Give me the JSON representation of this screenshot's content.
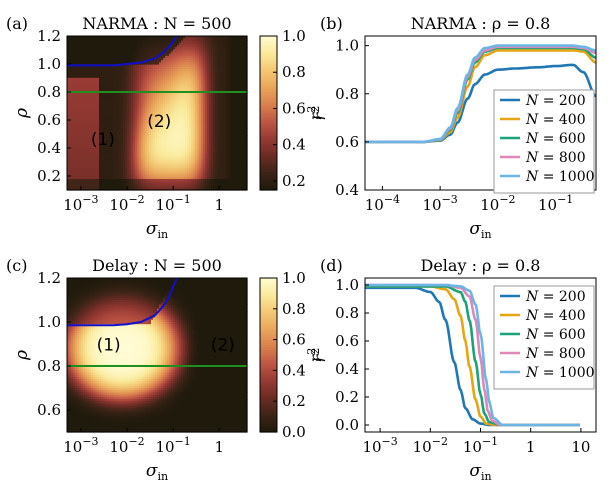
{
  "colors": {
    "heatmap_stops": [
      "#1f1a0c",
      "#3d2417",
      "#6b2c25",
      "#973a34",
      "#bf5745",
      "#d9804f",
      "#e9a65b",
      "#f3c874",
      "#faea9c",
      "#fffbd2"
    ],
    "boundary_line": "#1010cc",
    "cut_line": "#1f8f1f",
    "series": [
      "#1f77b4",
      "#e6a512",
      "#1aa37a",
      "#e087b8",
      "#6cb6e6"
    ]
  },
  "chart_data": [
    {
      "panel": "(a)",
      "type": "heatmap",
      "title": "NARMA : N = 500",
      "xlabel": "σ_in",
      "ylabel": "ρ",
      "colorbar_label": "r²",
      "xscale": "log",
      "xlim": [
        0.0005,
        4
      ],
      "ylim": [
        0.1,
        1.2
      ],
      "x_ticks": [
        "10^-3",
        "10^-2",
        "10^-1",
        "1"
      ],
      "y_ticks": [
        "0.2",
        "0.4",
        "0.6",
        "0.8",
        "1.0",
        "1.2"
      ],
      "colorbar_range": [
        0.15,
        1.0
      ],
      "colorbar_ticks": [
        "0.2",
        "0.4",
        "0.6",
        "0.8",
        "1.0"
      ],
      "horizontal_line_rho": 0.8,
      "region_labels": [
        {
          "text": "(1)",
          "sigma": 0.003,
          "rho": 0.42
        },
        {
          "text": "(2)",
          "sigma": 0.05,
          "rho": 0.55
        }
      ],
      "boundary_curve": {
        "x": [
          0.0005,
          0.002,
          0.005,
          0.01,
          0.02,
          0.04,
          0.06,
          0.08,
          0.1,
          0.12
        ],
        "y": [
          0.99,
          0.99,
          0.99,
          1.0,
          1.01,
          1.04,
          1.08,
          1.12,
          1.16,
          1.2
        ]
      }
    },
    {
      "panel": "(b)",
      "type": "line",
      "title": "NARMA : ρ = 0.8",
      "xlabel": "σ_in",
      "ylabel": "r²",
      "xscale": "log",
      "xlim": [
        5e-05,
        0.5
      ],
      "ylim": [
        0.4,
        1.04
      ],
      "x_ticks": [
        "10^-4",
        "10^-3",
        "10^-2",
        "10^-1"
      ],
      "y_ticks": [
        "0.4",
        "0.6",
        "0.8",
        "1.0"
      ],
      "legend_position": "lower-right",
      "series": [
        {
          "name": "N = 200",
          "x": [
            5e-05,
            0.0005,
            0.001,
            0.0015,
            0.002,
            0.003,
            0.004,
            0.006,
            0.01,
            0.02,
            0.05,
            0.1,
            0.2,
            0.3,
            0.5
          ],
          "y": [
            0.6,
            0.6,
            0.605,
            0.63,
            0.68,
            0.78,
            0.84,
            0.88,
            0.9,
            0.905,
            0.91,
            0.915,
            0.92,
            0.89,
            0.79
          ]
        },
        {
          "name": "N = 400",
          "x": [
            5e-05,
            0.0005,
            0.001,
            0.0015,
            0.002,
            0.003,
            0.004,
            0.006,
            0.01,
            0.02,
            0.05,
            0.1,
            0.2,
            0.3,
            0.5
          ],
          "y": [
            0.6,
            0.6,
            0.607,
            0.64,
            0.7,
            0.83,
            0.91,
            0.96,
            0.98,
            0.98,
            0.98,
            0.98,
            0.98,
            0.975,
            0.93
          ]
        },
        {
          "name": "N = 600",
          "x": [
            5e-05,
            0.0005,
            0.001,
            0.0015,
            0.002,
            0.003,
            0.004,
            0.006,
            0.01,
            0.02,
            0.05,
            0.1,
            0.2,
            0.3,
            0.5
          ],
          "y": [
            0.6,
            0.6,
            0.608,
            0.65,
            0.72,
            0.86,
            0.93,
            0.975,
            0.99,
            0.99,
            0.99,
            0.99,
            0.99,
            0.985,
            0.95
          ]
        },
        {
          "name": "N = 800",
          "x": [
            5e-05,
            0.0005,
            0.001,
            0.0015,
            0.002,
            0.003,
            0.004,
            0.006,
            0.01,
            0.02,
            0.05,
            0.1,
            0.2,
            0.3,
            0.5
          ],
          "y": [
            0.6,
            0.6,
            0.61,
            0.655,
            0.73,
            0.87,
            0.94,
            0.98,
            0.995,
            0.995,
            0.995,
            0.995,
            0.995,
            0.99,
            0.97
          ]
        },
        {
          "name": "N = 1000",
          "x": [
            5e-05,
            0.0005,
            0.001,
            0.0015,
            0.002,
            0.003,
            0.004,
            0.006,
            0.01,
            0.02,
            0.05,
            0.1,
            0.2,
            0.3,
            0.5
          ],
          "y": [
            0.6,
            0.6,
            0.612,
            0.66,
            0.74,
            0.88,
            0.95,
            0.99,
            1.0,
            1.0,
            1.0,
            1.0,
            1.0,
            0.995,
            0.98
          ]
        }
      ]
    },
    {
      "panel": "(c)",
      "type": "heatmap",
      "title": "Delay : N = 500",
      "xlabel": "σ_in",
      "ylabel": "ρ",
      "colorbar_label": "r²",
      "xscale": "log",
      "xlim": [
        0.0005,
        4
      ],
      "ylim": [
        0.5,
        1.2
      ],
      "x_ticks": [
        "10^-3",
        "10^-2",
        "10^-1",
        "1"
      ],
      "y_ticks": [
        "0.6",
        "0.8",
        "1.0",
        "1.2"
      ],
      "colorbar_range": [
        0.0,
        1.0
      ],
      "colorbar_ticks": [
        "0.0",
        "0.2",
        "0.4",
        "0.6",
        "0.8",
        "1.0"
      ],
      "horizontal_line_rho": 0.8,
      "region_labels": [
        {
          "text": "(1)",
          "sigma": 0.004,
          "rho": 0.87
        },
        {
          "text": "(2)",
          "sigma": 1.2,
          "rho": 0.87
        }
      ],
      "boundary_curve": {
        "x": [
          0.0005,
          0.002,
          0.005,
          0.01,
          0.02,
          0.04,
          0.06,
          0.08,
          0.1,
          0.12
        ],
        "y": [
          0.985,
          0.985,
          0.985,
          0.99,
          1.0,
          1.03,
          1.07,
          1.11,
          1.16,
          1.2
        ]
      }
    },
    {
      "panel": "(d)",
      "type": "line",
      "title": "Delay : ρ = 0.8",
      "xlabel": "σ_in",
      "ylabel": "r²",
      "xscale": "log",
      "xlim": [
        0.0005,
        20
      ],
      "ylim": [
        -0.05,
        1.05
      ],
      "x_ticks": [
        "10^-3",
        "10^-2",
        "10^-1",
        "1",
        "10"
      ],
      "y_ticks": [
        "0.0",
        "0.2",
        "0.4",
        "0.6",
        "0.8",
        "1.0"
      ],
      "legend_position": "upper-right",
      "series": [
        {
          "name": "N = 200",
          "x": [
            0.0005,
            0.005,
            0.01,
            0.015,
            0.02,
            0.03,
            0.04,
            0.05,
            0.07,
            0.1,
            0.15,
            0.2,
            1,
            10
          ],
          "y": [
            0.98,
            0.98,
            0.95,
            0.88,
            0.75,
            0.45,
            0.25,
            0.12,
            0.04,
            0.01,
            0.0,
            0.0,
            0.0,
            0.0
          ]
        },
        {
          "name": "N = 400",
          "x": [
            0.0005,
            0.005,
            0.01,
            0.02,
            0.03,
            0.04,
            0.05,
            0.06,
            0.08,
            0.1,
            0.13,
            0.2,
            1,
            10
          ],
          "y": [
            0.99,
            0.99,
            0.99,
            0.97,
            0.9,
            0.78,
            0.6,
            0.42,
            0.18,
            0.06,
            0.01,
            0.0,
            0.0,
            0.0
          ]
        },
        {
          "name": "N = 600",
          "x": [
            0.0005,
            0.005,
            0.01,
            0.02,
            0.04,
            0.05,
            0.06,
            0.08,
            0.1,
            0.12,
            0.15,
            0.25,
            1,
            10
          ],
          "y": [
            0.99,
            0.99,
            0.99,
            0.99,
            0.95,
            0.88,
            0.75,
            0.45,
            0.22,
            0.08,
            0.02,
            0.0,
            0.0,
            0.0
          ]
        },
        {
          "name": "N = 800",
          "x": [
            0.0005,
            0.005,
            0.01,
            0.02,
            0.04,
            0.06,
            0.08,
            0.1,
            0.12,
            0.14,
            0.17,
            0.25,
            1,
            10
          ],
          "y": [
            1.0,
            1.0,
            1.0,
            1.0,
            0.98,
            0.92,
            0.75,
            0.48,
            0.25,
            0.1,
            0.03,
            0.0,
            0.0,
            0.0
          ]
        },
        {
          "name": "N = 1000",
          "x": [
            0.0005,
            0.005,
            0.01,
            0.02,
            0.04,
            0.06,
            0.08,
            0.1,
            0.13,
            0.15,
            0.18,
            0.28,
            1,
            10
          ],
          "y": [
            1.0,
            1.0,
            1.0,
            1.0,
            0.99,
            0.96,
            0.86,
            0.65,
            0.32,
            0.16,
            0.05,
            0.0,
            0.0,
            0.0
          ]
        }
      ]
    }
  ]
}
